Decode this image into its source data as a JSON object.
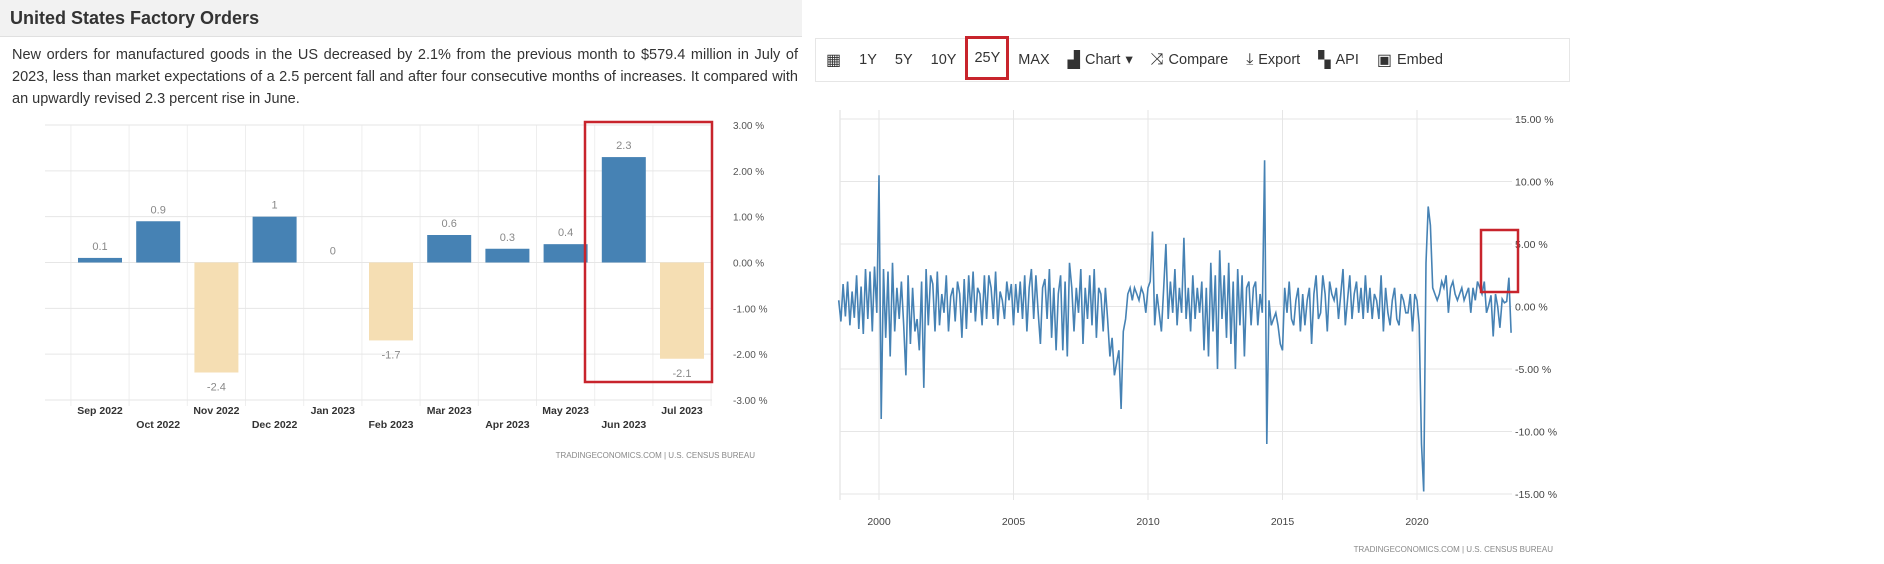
{
  "header": {
    "title": "United States Factory Orders"
  },
  "description": "New orders for manufactured goods in the US decreased by 2.1% from the previous month to $579.4 million in July of 2023, less than market expectations of a 2.5 percent fall and after four consecutive months of increases. It compared with an upwardly revised 2.3 percent rise in June.",
  "toolbar": {
    "items": [
      {
        "icon": "calendar-icon",
        "label": ""
      },
      {
        "label": "1Y"
      },
      {
        "label": "5Y"
      },
      {
        "label": "10Y"
      },
      {
        "label": "25Y",
        "selected": true
      },
      {
        "label": "MAX"
      },
      {
        "icon": "bar-chart-icon",
        "label": "Chart",
        "dropdown": true
      },
      {
        "icon": "shuffle-icon",
        "label": "Compare"
      },
      {
        "icon": "download-icon",
        "label": "Export"
      },
      {
        "icon": "grid-icon",
        "label": "API"
      },
      {
        "icon": "image-icon",
        "label": "Embed"
      }
    ]
  },
  "highlight_color": "#c8242c",
  "chart_data": [
    {
      "type": "bar",
      "source": "TRADINGECONOMICS.COM  |  U.S. CENSUS BUREAU",
      "categories": [
        "Sep 2022",
        "Oct 2022",
        "Nov 2022",
        "Dec 2022",
        "Jan 2023",
        "Feb 2023",
        "Mar 2023",
        "Apr 2023",
        "May 2023",
        "Jun 2023",
        "Jul 2023"
      ],
      "values": [
        0.1,
        0.9,
        -2.4,
        1,
        0,
        -1.7,
        0.6,
        0.3,
        0.4,
        2.3,
        -2.1
      ],
      "ylim": [
        -3,
        3
      ],
      "yticks": [
        "3.00 %",
        "2.00 %",
        "1.00 %",
        "0.00 %",
        "-1.00 %",
        "-2.00 %",
        "-3.00 %"
      ],
      "colors": {
        "positive": "#4682b4",
        "negative": "#f5deb3"
      },
      "grid": true,
      "highlighted": [
        "Jun 2023",
        "Jul 2023"
      ]
    },
    {
      "type": "line",
      "source": "TRADINGECONOMICS.COM  |  U.S. CENSUS BUREAU",
      "start": "1998-07",
      "frequency": "monthly",
      "xticks": [
        "2000",
        "2005",
        "2010",
        "2015",
        "2020"
      ],
      "xlim": [
        1998.5,
        2023.6
      ],
      "ylim": [
        -15,
        15
      ],
      "yticks": [
        "15.00 %",
        "10.00 %",
        "5.00 %",
        "0.00 %",
        "-5.00 %",
        "-10.00 %",
        "-15.00 %"
      ],
      "color": "#4682b4",
      "grid": true,
      "values": [
        0.5,
        -1.2,
        1.8,
        -0.8,
        2.0,
        -1.5,
        1.2,
        -0.9,
        2.5,
        -1.8,
        1.6,
        -2.2,
        3.0,
        -1.0,
        2.8,
        -2.0,
        3.2,
        -0.5,
        10.5,
        -9.0,
        3.0,
        -2.5,
        2.8,
        -4.0,
        3.5,
        -2.0,
        1.5,
        -1.0,
        2.0,
        -1.5,
        -5.5,
        2.5,
        -3.0,
        1.5,
        -2.0,
        -1.0,
        -3.5,
        2.0,
        -6.5,
        3.0,
        -1.5,
        2.5,
        1.8,
        -2.0,
        2.8,
        -1.5,
        1.0,
        -0.5,
        2.5,
        -2.0,
        0.8,
        1.5,
        -1.2,
        2.0,
        1.0,
        -2.5,
        2.2,
        -1.8,
        2.5,
        -0.5,
        2.8,
        -1.2,
        1.5,
        1.0,
        -1.5,
        2.5,
        -1.0,
        2.5,
        1.5,
        -1.0,
        2.8,
        -1.5,
        1.2,
        0.5,
        -1.0,
        2.0,
        0.5,
        1.8,
        -1.5,
        1.8,
        -0.5,
        2.0,
        -1.0,
        2.5,
        -2.0,
        1.5,
        3.0,
        -1.0,
        2.5,
        -0.5,
        -3.0,
        1.5,
        2.2,
        -1.0,
        3.0,
        -2.5,
        1.5,
        -3.5,
        1.0,
        2.5,
        -3.5,
        2.0,
        -4.0,
        3.5,
        1.5,
        -2.0,
        1.5,
        -0.5,
        3.0,
        -3.0,
        1.5,
        -1.0,
        2.5,
        -1.5,
        3.0,
        -2.5,
        1.5,
        1.0,
        -2.0,
        1.5,
        -1.0,
        -4.0,
        -2.5,
        -5.5,
        -4.5,
        -3.5,
        -8.2,
        -2.0,
        -1.0,
        1.0,
        1.5,
        0.5,
        1.5,
        1.0,
        0.5,
        1.5,
        1.0,
        -0.5,
        1.5,
        2.0,
        6.0,
        -1.5,
        1.0,
        -0.5,
        -2.0,
        1.5,
        5.0,
        -1.0,
        2.0,
        -0.5,
        3.0,
        -1.5,
        1.5,
        -0.5,
        5.5,
        -1.0,
        1.5,
        -2.0,
        2.5,
        -1.0,
        1.5,
        -0.5,
        2.0,
        -3.5,
        1.5,
        -4.0,
        3.5,
        -2.0,
        2.5,
        -5.0,
        4.5,
        -1.0,
        2.5,
        -2.5,
        3.5,
        -3.0,
        2.0,
        -5.0,
        3.0,
        -1.5,
        2.5,
        -4.0,
        1.5,
        2.0,
        -1.5,
        1.5,
        2.0,
        -1.5,
        1.0,
        -0.5,
        11.7,
        -11.0,
        0.5,
        -1.5,
        -1.0,
        -0.5,
        -1.5,
        -3.0,
        -3.5,
        1.5,
        -0.5,
        2.0,
        -1.0,
        -1.5,
        0.5,
        1.5,
        -2.0,
        1.0,
        -1.5,
        0.5,
        1.5,
        -3.0,
        1.0,
        2.5,
        -1.0,
        -0.5,
        2.5,
        1.0,
        -2.0,
        2.0,
        1.0,
        0.5,
        1.5,
        -1.0,
        1.0,
        3.0,
        -1.5,
        0.5,
        2.5,
        -1.0,
        1.0,
        2.0,
        -0.5,
        1.5,
        -1.0,
        2.5,
        -0.5,
        1.5,
        -1.0,
        1.0,
        0.5,
        -1.0,
        2.5,
        -2.0,
        1.5,
        -0.5,
        -1.5,
        0.5,
        1.5,
        -1.0,
        -1.5,
        1.0,
        0.5,
        -0.5,
        -0.5,
        1.0,
        -2.0,
        1.0,
        0.5,
        -1.5,
        -11.0,
        -14.8,
        3.5,
        8.0,
        6.5,
        1.5,
        1.0,
        0.5,
        1.0,
        2.0,
        1.5,
        2.5,
        -0.5,
        1.5,
        2.0,
        1.0,
        0.5,
        1.0,
        1.5,
        0.5,
        1.0,
        1.5,
        -0.5,
        1.5,
        0.5,
        2.0,
        1.5,
        1.0,
        2.0,
        -0.5,
        0.1,
        0.9,
        -2.4,
        1.0,
        0,
        -1.7,
        0.6,
        0.3,
        0.4,
        2.3,
        -2.1
      ]
    }
  ]
}
